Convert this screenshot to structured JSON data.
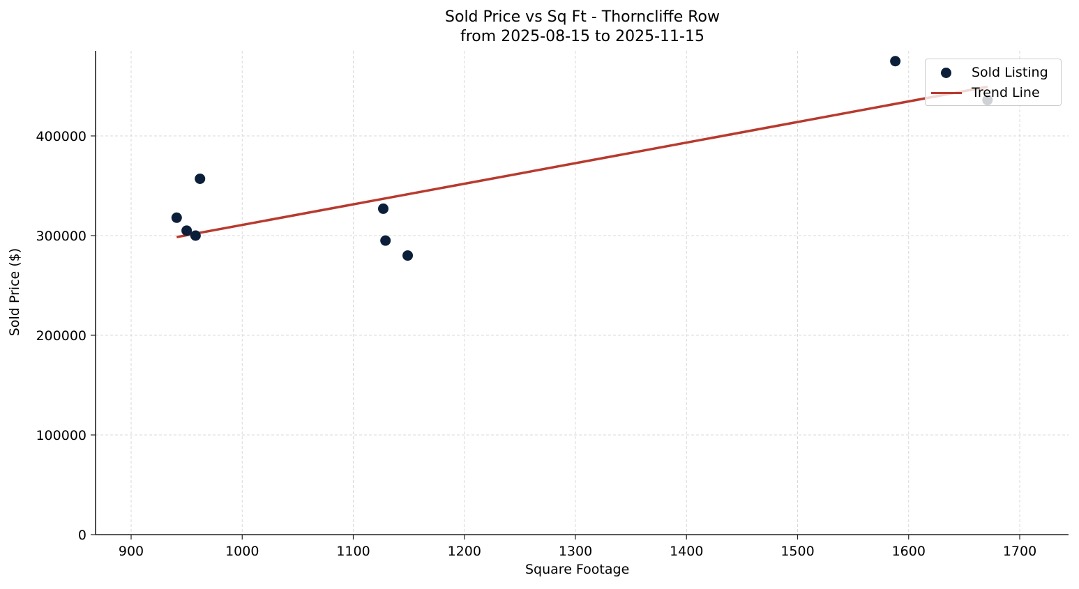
{
  "chart_data": {
    "type": "scatter",
    "title": "Sold Price vs Sq Ft - Thorncliffe Row",
    "subtitle": "from 2025-08-15 to 2025-11-15",
    "xlabel": "Square Footage",
    "ylabel": "Sold Price ($)",
    "xlim": [
      868,
      1745
    ],
    "ylim": [
      0,
      485000
    ],
    "x_ticks": [
      900,
      1000,
      1100,
      1200,
      1300,
      1400,
      1500,
      1600,
      1700
    ],
    "y_ticks": [
      0,
      100000,
      200000,
      300000,
      400000
    ],
    "grid": true,
    "legend_position": "upper right",
    "series": [
      {
        "name": "Sold Listing",
        "kind": "scatter",
        "color": "#0b1f3a",
        "points": [
          {
            "x": 941,
            "y": 318000
          },
          {
            "x": 950,
            "y": 305000
          },
          {
            "x": 958,
            "y": 300000
          },
          {
            "x": 962,
            "y": 357000
          },
          {
            "x": 1127,
            "y": 327000
          },
          {
            "x": 1129,
            "y": 295000
          },
          {
            "x": 1149,
            "y": 280000
          },
          {
            "x": 1588,
            "y": 475000
          },
          {
            "x": 1671,
            "y": 436000
          }
        ]
      },
      {
        "name": "Trend Line",
        "kind": "line",
        "color": "#b83a2e",
        "points": [
          {
            "x": 941,
            "y": 298500
          },
          {
            "x": 1671,
            "y": 449300
          }
        ]
      }
    ]
  },
  "legend": {
    "items": [
      {
        "label": "Sold Listing"
      },
      {
        "label": "Trend Line"
      }
    ]
  }
}
